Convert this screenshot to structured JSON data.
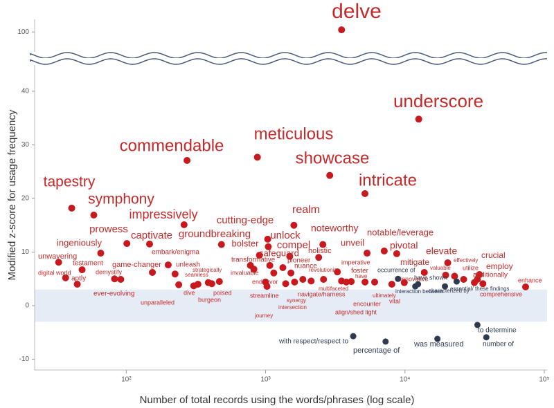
{
  "chart_data": {
    "type": "scatter",
    "xlabel": "Number of total records using the words/phrases (log scale)",
    "ylabel": "Modified z-score for usage frequency",
    "xscale": "log",
    "xlim": [
      22,
      100000
    ],
    "ylim": [
      -12,
      102
    ],
    "y_break": [
      45,
      95
    ],
    "shaded_band": [
      -3,
      3
    ],
    "xticks": [
      {
        "value": 100,
        "label": "10²"
      },
      {
        "value": 1000,
        "label": "10³"
      },
      {
        "value": 10000,
        "label": "10⁴"
      },
      {
        "value": 100000,
        "label": "10⁵"
      }
    ],
    "yticks": [
      -10,
      0,
      10,
      20,
      30,
      40,
      100
    ],
    "series": [
      {
        "color": "#c8191e",
        "labels": [
          "delve",
          "underscore",
          "meticulous",
          "commendable",
          "showcase",
          "intricate",
          "tapestry",
          "symphony",
          "impressively",
          "realm",
          "prowess",
          "captivate",
          "groundbreaking",
          "cutting-edge",
          "unlock",
          "bolster",
          "compel",
          "safeguard",
          "noteworthy",
          "holistic",
          "unveil",
          "notable/leverage",
          "pivotal",
          "elevate",
          "mitigate",
          "crucial",
          "employ",
          "additionally",
          "enhance",
          "comprehensive",
          "effectively",
          "utilize",
          "valuable",
          "unwavering",
          "ingeniously",
          "digital world",
          "testament",
          "aptly",
          "demystify",
          "game-changer",
          "ever-evolving",
          "embark/enigma",
          "unleash",
          "unparalleled",
          "strategically",
          "seamless",
          "dive",
          "burgeon",
          "poised",
          "transformative",
          "invaluable",
          "endeavor",
          "streamline",
          "pioneer",
          "nuance",
          "synergy",
          "intersection",
          "journey",
          "revolutionize",
          "multifaceted",
          "navigate/harness",
          "imperative",
          "foster",
          "have",
          "encounter",
          "align/shed light",
          "ultimately",
          "vital",
          "innovative"
        ],
        "x": [
          3508,
          12560,
          873,
          273,
          2886,
          5164,
          40.6,
          58.5,
          260,
          1596,
          101,
          147,
          482,
          1035,
          1045,
          902,
          1490,
          1072,
          2576,
          2404,
          5346,
          7100,
          8730,
          20280,
          13770,
          34250,
          33110,
          36240,
          73400,
          31500,
          22700,
          26370,
          19590,
          32.7,
          65.6,
          36.7,
          48.2,
          44.5,
          82.4,
          154,
          91.3,
          200,
          224,
          238,
          388,
          327,
          305,
          411,
          466,
          778,
          824,
          1145,
          1023,
          1330,
          1520,
          1393,
          1614,
          1000,
          1850,
          2604,
          2122,
          3273,
          3508,
          4115,
          5170,
          3795,
          6060,
          8050,
          9890
        ],
        "values": [
          100.4,
          34.8,
          27.7,
          27.1,
          24.3,
          20.9,
          18.2,
          16.9,
          15.1,
          15.0,
          11.6,
          11.5,
          11.4,
          12.4,
          11.0,
          9.4,
          9.2,
          7.5,
          11.4,
          9.0,
          9.8,
          10.2,
          9.7,
          8.0,
          6.2,
          5.8,
          4.9,
          4.1,
          3.5,
          4.3,
          5.5,
          4.9,
          5.7,
          8.1,
          9.8,
          5.2,
          6.7,
          4.0,
          5.0,
          6.2,
          4.9,
          7.6,
          5.9,
          3.9,
          4.3,
          4.0,
          3.7,
          4.1,
          4.5,
          7.5,
          6.8,
          6.1,
          3.6,
          7.1,
          6.1,
          4.1,
          4.4,
          4.4,
          4.9,
          4.9,
          4.6,
          6.3,
          4.6,
          4.5,
          4.4,
          4.4,
          4.4,
          4.0,
          4.3
        ]
      },
      {
        "color": "#2e3a4f",
        "labels": [
          "occurrence of",
          "have shown",
          "interaction between",
          "characterized by",
          "essential/ these findings",
          "to determine",
          "number of",
          "was measured",
          "percentage of",
          "with respect/respect to"
        ],
        "x": [
          8910,
          12410,
          11860,
          19360,
          23500,
          33110,
          38370,
          17100,
          7260,
          4255
        ],
        "values": [
          5.0,
          4.0,
          3.6,
          3.6,
          4.5,
          -3.6,
          -5.9,
          -6.2,
          -6.7,
          -5.7
        ]
      }
    ]
  }
}
